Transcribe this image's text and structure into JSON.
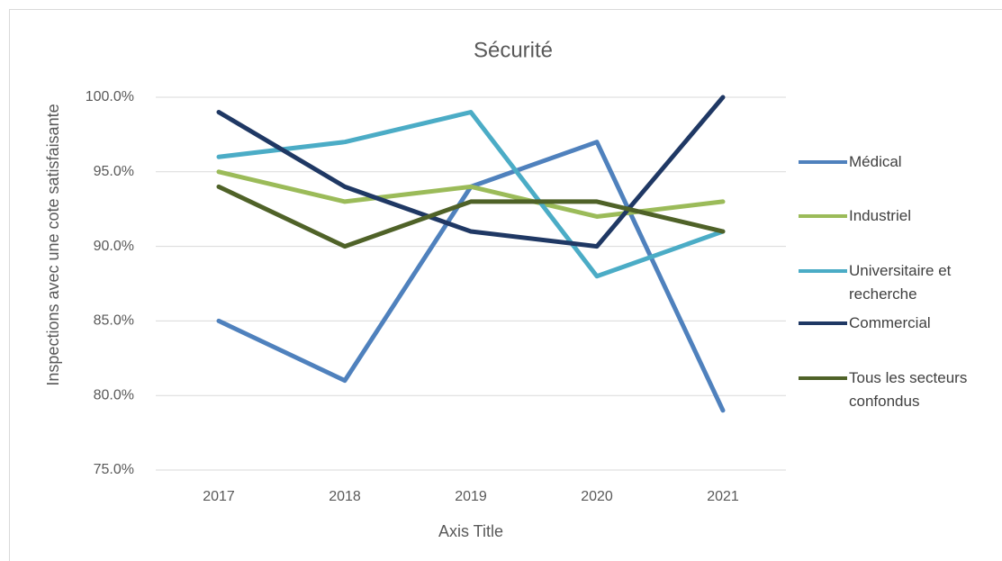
{
  "chart_data": {
    "type": "line",
    "title": "Sécurité",
    "y_label": "Inspections avec une cote satisfaisante",
    "x_label": "Axis Title",
    "categories": [
      "2017",
      "2018",
      "2019",
      "2020",
      "2021"
    ],
    "series": [
      {
        "name": "Médical",
        "color": "#4f81bd",
        "values": [
          85,
          81,
          94,
          97,
          79
        ]
      },
      {
        "name": "Industriel",
        "color": "#9bbb59",
        "values": [
          95,
          93,
          94,
          92,
          93
        ]
      },
      {
        "name": "Universitaire et recherche",
        "color": "#4bacc6",
        "values": [
          96,
          97,
          99,
          88,
          91
        ]
      },
      {
        "name": "Commercial",
        "color": "#1f3864",
        "values": [
          99,
          94,
          91,
          90,
          100
        ]
      },
      {
        "name": "Tous les secteurs confondus",
        "color": "#4f6228",
        "values": [
          94,
          90,
          93,
          93,
          91
        ]
      }
    ],
    "ylim": [
      75,
      100
    ],
    "yticks": [
      {
        "value": 75,
        "label": "75.0%"
      },
      {
        "value": 80,
        "label": "80.0%"
      },
      {
        "value": 85,
        "label": "85.0%"
      },
      {
        "value": 90,
        "label": "90.0%"
      },
      {
        "value": 95,
        "label": "95.0%"
      },
      {
        "value": 100,
        "label": "100.0%"
      }
    ],
    "grid": true,
    "legend": "right"
  }
}
